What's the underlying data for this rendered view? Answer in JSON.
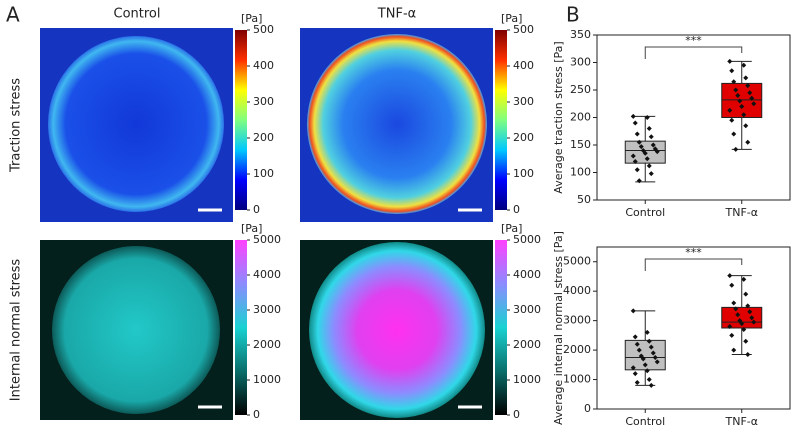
{
  "panel_labels": [
    "A",
    "B"
  ],
  "panel_a": {
    "column_titles": [
      "Control",
      "TNF-α"
    ],
    "row_labels": [
      "Traction stress",
      "Internal normal stress"
    ],
    "colorbars": [
      {
        "unit": "[Pa]",
        "lim": [
          0,
          500
        ],
        "ticks": [
          0,
          100,
          200,
          300,
          400,
          500
        ],
        "colors": [
          "#00007f",
          "#0000ff",
          "#00c8ff",
          "#7fff7f",
          "#ffff00",
          "#ff3000",
          "#7f0000"
        ]
      },
      {
        "unit": "[Pa]",
        "lim": [
          0,
          500
        ],
        "ticks": [
          0,
          100,
          200,
          300,
          400,
          500
        ],
        "colors": [
          "#00007f",
          "#0000ff",
          "#00c8ff",
          "#7fff7f",
          "#ffff00",
          "#ff3000",
          "#7f0000"
        ]
      },
      {
        "unit": "[Pa]",
        "lim": [
          0,
          5000
        ],
        "ticks": [
          0,
          1000,
          2000,
          3000,
          4000,
          5000
        ],
        "colors": [
          "#000000",
          "#0a6e6a",
          "#19d2d2",
          "#8c8cff",
          "#ff40ff"
        ]
      },
      {
        "unit": "[Pa]",
        "lim": [
          0,
          5000
        ],
        "ticks": [
          0,
          1000,
          2000,
          3000,
          4000,
          5000
        ],
        "colors": [
          "#000000",
          "#0a6e6a",
          "#19d2d2",
          "#8c8cff",
          "#ff40ff"
        ]
      }
    ]
  },
  "chart_data": [
    {
      "type": "box",
      "y_label": "Average traction stress [Pa]",
      "categories": [
        "Control",
        "TNF-α"
      ],
      "ylim": [
        50,
        350
      ],
      "yticks": [
        50,
        100,
        150,
        200,
        250,
        300,
        350
      ],
      "annotation": "***",
      "boxes": [
        {
          "color": "#c0c0c0",
          "whislo": 83,
          "q1": 117,
          "med": 140,
          "q3": 157,
          "whishi": 202,
          "points": [
            202,
            200,
            190,
            180,
            170,
            165,
            155,
            150,
            147,
            143,
            140,
            138,
            135,
            130,
            125,
            120,
            112,
            105,
            98,
            85
          ]
        },
        {
          "color": "#e00000",
          "whislo": 142,
          "q1": 200,
          "med": 232,
          "q3": 262,
          "whishi": 302,
          "points": [
            302,
            295,
            285,
            272,
            265,
            258,
            250,
            245,
            240,
            235,
            230,
            225,
            220,
            213,
            205,
            195,
            185,
            170,
            155,
            142
          ]
        }
      ]
    },
    {
      "type": "box",
      "y_label": "Average internal normal stress [Pa]",
      "categories": [
        "Control",
        "TNF-α"
      ],
      "ylim": [
        0,
        5500
      ],
      "yticks": [
        0,
        1000,
        2000,
        3000,
        4000,
        5000
      ],
      "annotation": "***",
      "boxes": [
        {
          "color": "#c0c0c0",
          "whislo": 800,
          "q1": 1330,
          "med": 1750,
          "q3": 2330,
          "whishi": 3330,
          "points": [
            3330,
            2600,
            2450,
            2300,
            2200,
            2100,
            2000,
            1900,
            1800,
            1750,
            1700,
            1600,
            1500,
            1400,
            1300,
            1200,
            1000,
            900,
            800
          ]
        },
        {
          "color": "#e00000",
          "whislo": 1850,
          "q1": 2750,
          "med": 2950,
          "q3": 3450,
          "whishi": 4530,
          "points": [
            4530,
            4400,
            4200,
            3900,
            3600,
            3500,
            3400,
            3300,
            3200,
            3100,
            3000,
            2950,
            2900,
            2800,
            2700,
            2500,
            2300,
            2000,
            1850
          ]
        }
      ]
    }
  ]
}
